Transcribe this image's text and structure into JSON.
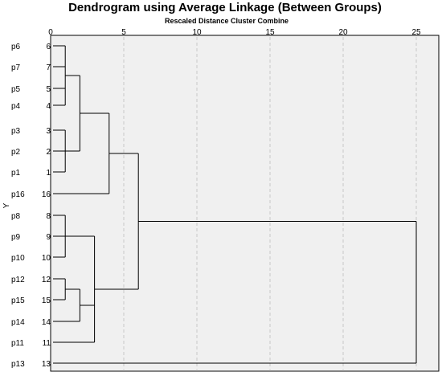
{
  "chart_data": {
    "type": "dendrogram",
    "title": "Dendrogram using Average Linkage (Between Groups)",
    "xlabel": "Rescaled Distance Cluster Combine",
    "ylabel": "Y",
    "xlim": [
      0,
      25
    ],
    "xticks": [
      "0",
      "5",
      "10",
      "15",
      "20",
      "25"
    ],
    "grid": "vertical dashed",
    "leaves": [
      {
        "label": "p6",
        "id": "6"
      },
      {
        "label": "p7",
        "id": "7"
      },
      {
        "label": "p5",
        "id": "5"
      },
      {
        "label": "p4",
        "id": "4"
      },
      {
        "label": "p3",
        "id": "3"
      },
      {
        "label": "p2",
        "id": "2"
      },
      {
        "label": "p1",
        "id": "1"
      },
      {
        "label": "p16",
        "id": "16"
      },
      {
        "label": "p8",
        "id": "8"
      },
      {
        "label": "p9",
        "id": "9"
      },
      {
        "label": "p10",
        "id": "10"
      },
      {
        "label": "p12",
        "id": "12"
      },
      {
        "label": "p15",
        "id": "15"
      },
      {
        "label": "p14",
        "id": "14"
      },
      {
        "label": "p11",
        "id": "11"
      },
      {
        "label": "p13",
        "id": "13"
      }
    ],
    "merges": [
      {
        "members": [
          0,
          1,
          2,
          3
        ],
        "distance": 1.0
      },
      {
        "members": [
          4,
          5,
          6
        ],
        "distance": 1.0
      },
      {
        "members": [
          8,
          9,
          10
        ],
        "distance": 1.0
      },
      {
        "members": [
          11,
          12
        ],
        "distance": 1.0
      },
      {
        "members": [
          "m0",
          "m1"
        ],
        "distance": 2.0
      },
      {
        "members": [
          "m3",
          13
        ],
        "distance": 2.0
      },
      {
        "members": [
          "m2",
          "m5",
          14
        ],
        "distance": 3.0
      },
      {
        "members": [
          "m4",
          7
        ],
        "distance": 4.0
      },
      {
        "members": [
          "m7",
          "m6"
        ],
        "distance": 6.0
      },
      {
        "members": [
          "m8",
          15
        ],
        "distance": 25.0
      }
    ]
  }
}
